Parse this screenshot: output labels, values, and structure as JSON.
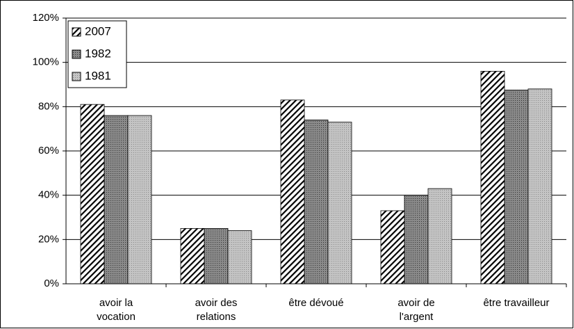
{
  "chart_data": {
    "type": "bar",
    "categories": [
      "avoir la\nvocation",
      "avoir des\nrelations",
      "être dévoué",
      "avoir de\nl'argent",
      "être travailleur"
    ],
    "series": [
      {
        "name": "2007",
        "color": "#ffffff",
        "pattern": "hatch",
        "values": [
          81,
          25,
          83,
          33,
          96
        ]
      },
      {
        "name": "1982",
        "color": "#8a8a8a",
        "pattern": "dots",
        "values": [
          76,
          25,
          74,
          40,
          87.5
        ]
      },
      {
        "name": "1981",
        "color": "#c4c4c4",
        "pattern": "dots",
        "values": [
          76,
          24,
          73,
          43,
          88
        ]
      }
    ],
    "ylim": [
      0,
      120
    ],
    "yticks": [
      {
        "value": 0,
        "label": "0%"
      },
      {
        "value": 20,
        "label": "20%"
      },
      {
        "value": 40,
        "label": "40%"
      },
      {
        "value": 60,
        "label": "60%"
      },
      {
        "value": 80,
        "label": "80%"
      },
      {
        "value": 100,
        "label": "100%"
      },
      {
        "value": 120,
        "label": "120%"
      }
    ],
    "grid": true,
    "legend": "top-left"
  }
}
